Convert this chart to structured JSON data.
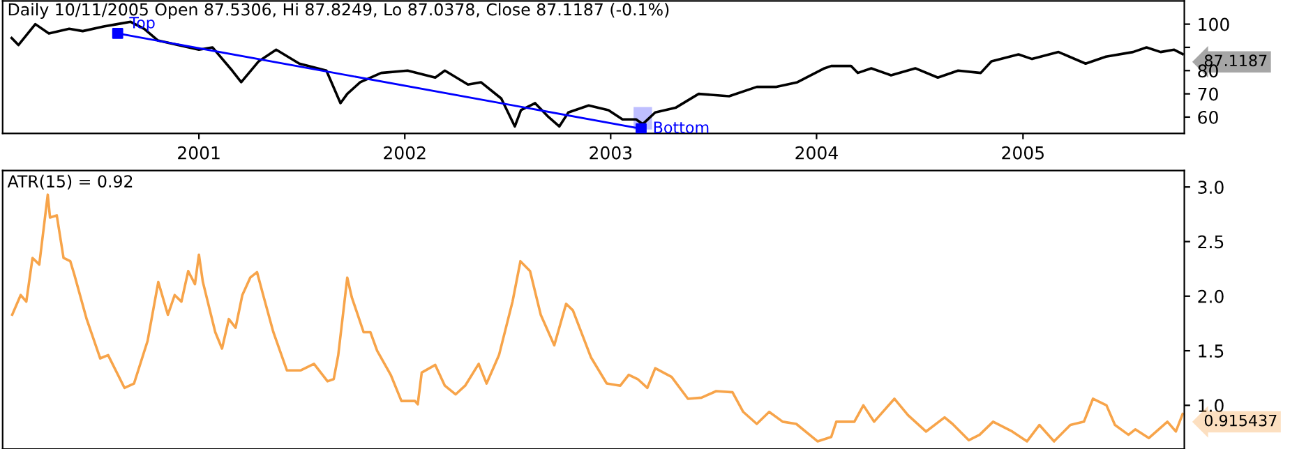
{
  "chart_data": [
    {
      "type": "line",
      "title": "Daily 10/11/2005 Open 87.5306, Hi 87.8249, Lo 87.0378, Close 87.1187 (-0.1%)",
      "xlim": [
        "2000-01-19",
        "2005-10-14"
      ],
      "xticks": [
        {
          "value": "2001-01-01",
          "label": "2001"
        },
        {
          "value": "2002-01-01",
          "label": "2002"
        },
        {
          "value": "2003-01-01",
          "label": "2003"
        },
        {
          "value": "2004-01-01",
          "label": "2004"
        },
        {
          "value": "2005-01-01",
          "label": "2005"
        }
      ],
      "ylim": [
        53,
        110
      ],
      "yticks": [
        60,
        70,
        80,
        {
          "value": 90,
          "label": null
        },
        100
      ],
      "series": [
        {
          "color": "#000000",
          "x": [
            "2000-02-04",
            "2000-02-16",
            "2000-03-17",
            "2000-04-10",
            "2000-05-16",
            "2000-06-09",
            "2000-07-16",
            "2000-08-09",
            "2000-09-02",
            "2000-09-26",
            "2000-10-20",
            "2000-11-26",
            "2001-01-01",
            "2001-01-25",
            "2001-03-01",
            "2001-03-17",
            "2001-04-17",
            "2001-05-18",
            "2001-06-28",
            "2001-08-15",
            "2001-09-09",
            "2001-09-21",
            "2001-10-14",
            "2001-11-20",
            "2002-01-06",
            "2002-02-24",
            "2002-03-13",
            "2002-04-23",
            "2002-05-16",
            "2002-06-21",
            "2002-07-15",
            "2002-07-26",
            "2002-08-20",
            "2002-09-13",
            "2002-10-02",
            "2002-10-18",
            "2002-11-23",
            "2002-12-28",
            "2003-01-22",
            "2003-02-15",
            "2003-02-27",
            "2003-03-21",
            "2003-04-26",
            "2003-06-06",
            "2003-07-30",
            "2003-09-17",
            "2003-10-22",
            "2003-11-28",
            "2004-01-15",
            "2004-01-27",
            "2004-03-02",
            "2004-03-14",
            "2004-04-07",
            "2004-05-12",
            "2004-06-24",
            "2004-08-03",
            "2004-09-08",
            "2004-10-18",
            "2004-11-06",
            "2004-12-24",
            "2005-01-17",
            "2005-03-05",
            "2005-04-22",
            "2005-05-28",
            "2005-07-15",
            "2005-08-08",
            "2005-09-02",
            "2005-09-26",
            "2005-10-11"
          ],
          "values": [
            94,
            91,
            100,
            96,
            98,
            97,
            99,
            100,
            101,
            98,
            93,
            91,
            89,
            90,
            80,
            75,
            84,
            89,
            83,
            80,
            66,
            70,
            75,
            79,
            80,
            77,
            80,
            74,
            75,
            68,
            56,
            63,
            66,
            60,
            56,
            62,
            65,
            63,
            59,
            59,
            57,
            62,
            64,
            70,
            69,
            73,
            73,
            75,
            81,
            82,
            82,
            79,
            81,
            78,
            81,
            77,
            80,
            79,
            84,
            87,
            85,
            88,
            83,
            86,
            88,
            90,
            88,
            89,
            87.1
          ]
        },
        {
          "color": "#0000ff",
          "marker": "square",
          "x": [
            "2000-08-10",
            "2003-02-24"
          ],
          "values": [
            96,
            55
          ]
        }
      ],
      "annotations": [
        "87.1187",
        {
          "text": "Top",
          "x": "2000-08-10",
          "y": 96
        },
        {
          "text": "Bottom",
          "x": "2003-02-24",
          "y": 55
        }
      ]
    },
    {
      "type": "line",
      "title": "ATR(15) = 0.92",
      "tick_labels": "y",
      "xlim": [
        "2000-01-19",
        "2005-10-14"
      ],
      "ylim": [
        0.6,
        3.15
      ],
      "yticks": [
        {
          "value": 1,
          "label": "1.0"
        },
        1.5,
        {
          "value": 2,
          "label": "2.0"
        },
        2.5,
        {
          "value": 3,
          "label": "3.0"
        }
      ],
      "series": [
        {
          "color": "#f7a44a",
          "x": [
            "2000-02-05",
            "2000-02-20",
            "2000-03-01",
            "2000-03-12",
            "2000-03-24",
            "2000-04-08",
            "2000-04-12",
            "2000-04-24",
            "2000-05-06",
            "2000-05-18",
            "2000-05-25",
            "2000-06-16",
            "2000-07-10",
            "2000-07-24",
            "2000-08-22",
            "2000-09-08",
            "2000-10-02",
            "2000-10-21",
            "2000-11-07",
            "2000-11-19",
            "2000-12-01",
            "2000-12-13",
            "2000-12-25",
            "2001-01-01",
            "2001-01-08",
            "2001-01-30",
            "2001-02-11",
            "2001-02-23",
            "2001-03-07",
            "2001-03-19",
            "2001-04-02",
            "2001-04-14",
            "2001-04-26",
            "2001-05-13",
            "2001-06-06",
            "2001-06-30",
            "2001-07-24",
            "2001-08-17",
            "2001-08-28",
            "2001-09-05",
            "2001-09-21",
            "2001-09-29",
            "2001-10-20",
            "2001-11-01",
            "2001-11-13",
            "2001-12-07",
            "2001-12-26",
            "2002-01-19",
            "2002-01-24",
            "2002-01-31",
            "2002-02-24",
            "2002-03-13",
            "2002-04-01",
            "2002-04-18",
            "2002-05-12",
            "2002-05-26",
            "2002-06-17",
            "2002-07-11",
            "2002-07-25",
            "2002-08-11",
            "2002-08-30",
            "2002-09-23",
            "2002-10-14",
            "2002-10-26",
            "2002-11-27",
            "2002-12-25",
            "2003-01-18",
            "2003-02-02",
            "2003-02-18",
            "2003-03-07",
            "2003-03-21",
            "2003-04-19",
            "2003-05-18",
            "2003-06-11",
            "2003-07-07",
            "2003-08-05",
            "2003-08-24",
            "2003-09-17",
            "2003-10-09",
            "2003-11-02",
            "2003-11-26",
            "2004-01-03",
            "2004-01-27",
            "2004-02-05",
            "2004-03-08",
            "2004-03-24",
            "2004-04-12",
            "2004-05-18",
            "2004-06-11",
            "2004-07-13",
            "2004-08-15",
            "2004-08-29",
            "2004-09-27",
            "2004-10-16",
            "2004-11-09",
            "2004-12-13",
            "2005-01-08",
            "2005-01-30",
            "2005-02-25",
            "2005-03-26",
            "2005-04-19",
            "2005-05-05",
            "2005-05-29",
            "2005-06-13",
            "2005-07-07",
            "2005-07-19",
            "2005-08-12",
            "2005-09-14",
            "2005-09-29",
            "2005-10-11"
          ],
          "values": [
            1.83,
            2.01,
            1.95,
            2.35,
            2.29,
            2.93,
            2.72,
            2.74,
            2.35,
            2.32,
            2.2,
            1.79,
            1.43,
            1.46,
            1.16,
            1.2,
            1.59,
            2.13,
            1.83,
            2.01,
            1.95,
            2.23,
            2.11,
            2.38,
            2.13,
            1.67,
            1.52,
            1.79,
            1.71,
            2.01,
            2.17,
            2.22,
            1.99,
            1.67,
            1.32,
            1.32,
            1.38,
            1.22,
            1.24,
            1.46,
            2.17,
            1.99,
            1.67,
            1.67,
            1.5,
            1.28,
            1.04,
            1.04,
            1.01,
            1.3,
            1.37,
            1.18,
            1.1,
            1.18,
            1.38,
            1.2,
            1.46,
            1.95,
            2.32,
            2.23,
            1.83,
            1.55,
            1.93,
            1.87,
            1.44,
            1.2,
            1.18,
            1.28,
            1.24,
            1.16,
            1.34,
            1.26,
            1.06,
            1.07,
            1.13,
            1.12,
            0.94,
            0.83,
            0.94,
            0.85,
            0.83,
            0.67,
            0.71,
            0.85,
            0.85,
            1.0,
            0.85,
            1.06,
            0.91,
            0.76,
            0.89,
            0.83,
            0.68,
            0.73,
            0.85,
            0.76,
            0.67,
            0.82,
            0.67,
            0.82,
            0.85,
            1.06,
            1.0,
            0.82,
            0.73,
            0.78,
            0.7,
            0.85,
            0.76,
            0.92
          ]
        }
      ],
      "annotations": [
        "0.915437"
      ]
    }
  ]
}
